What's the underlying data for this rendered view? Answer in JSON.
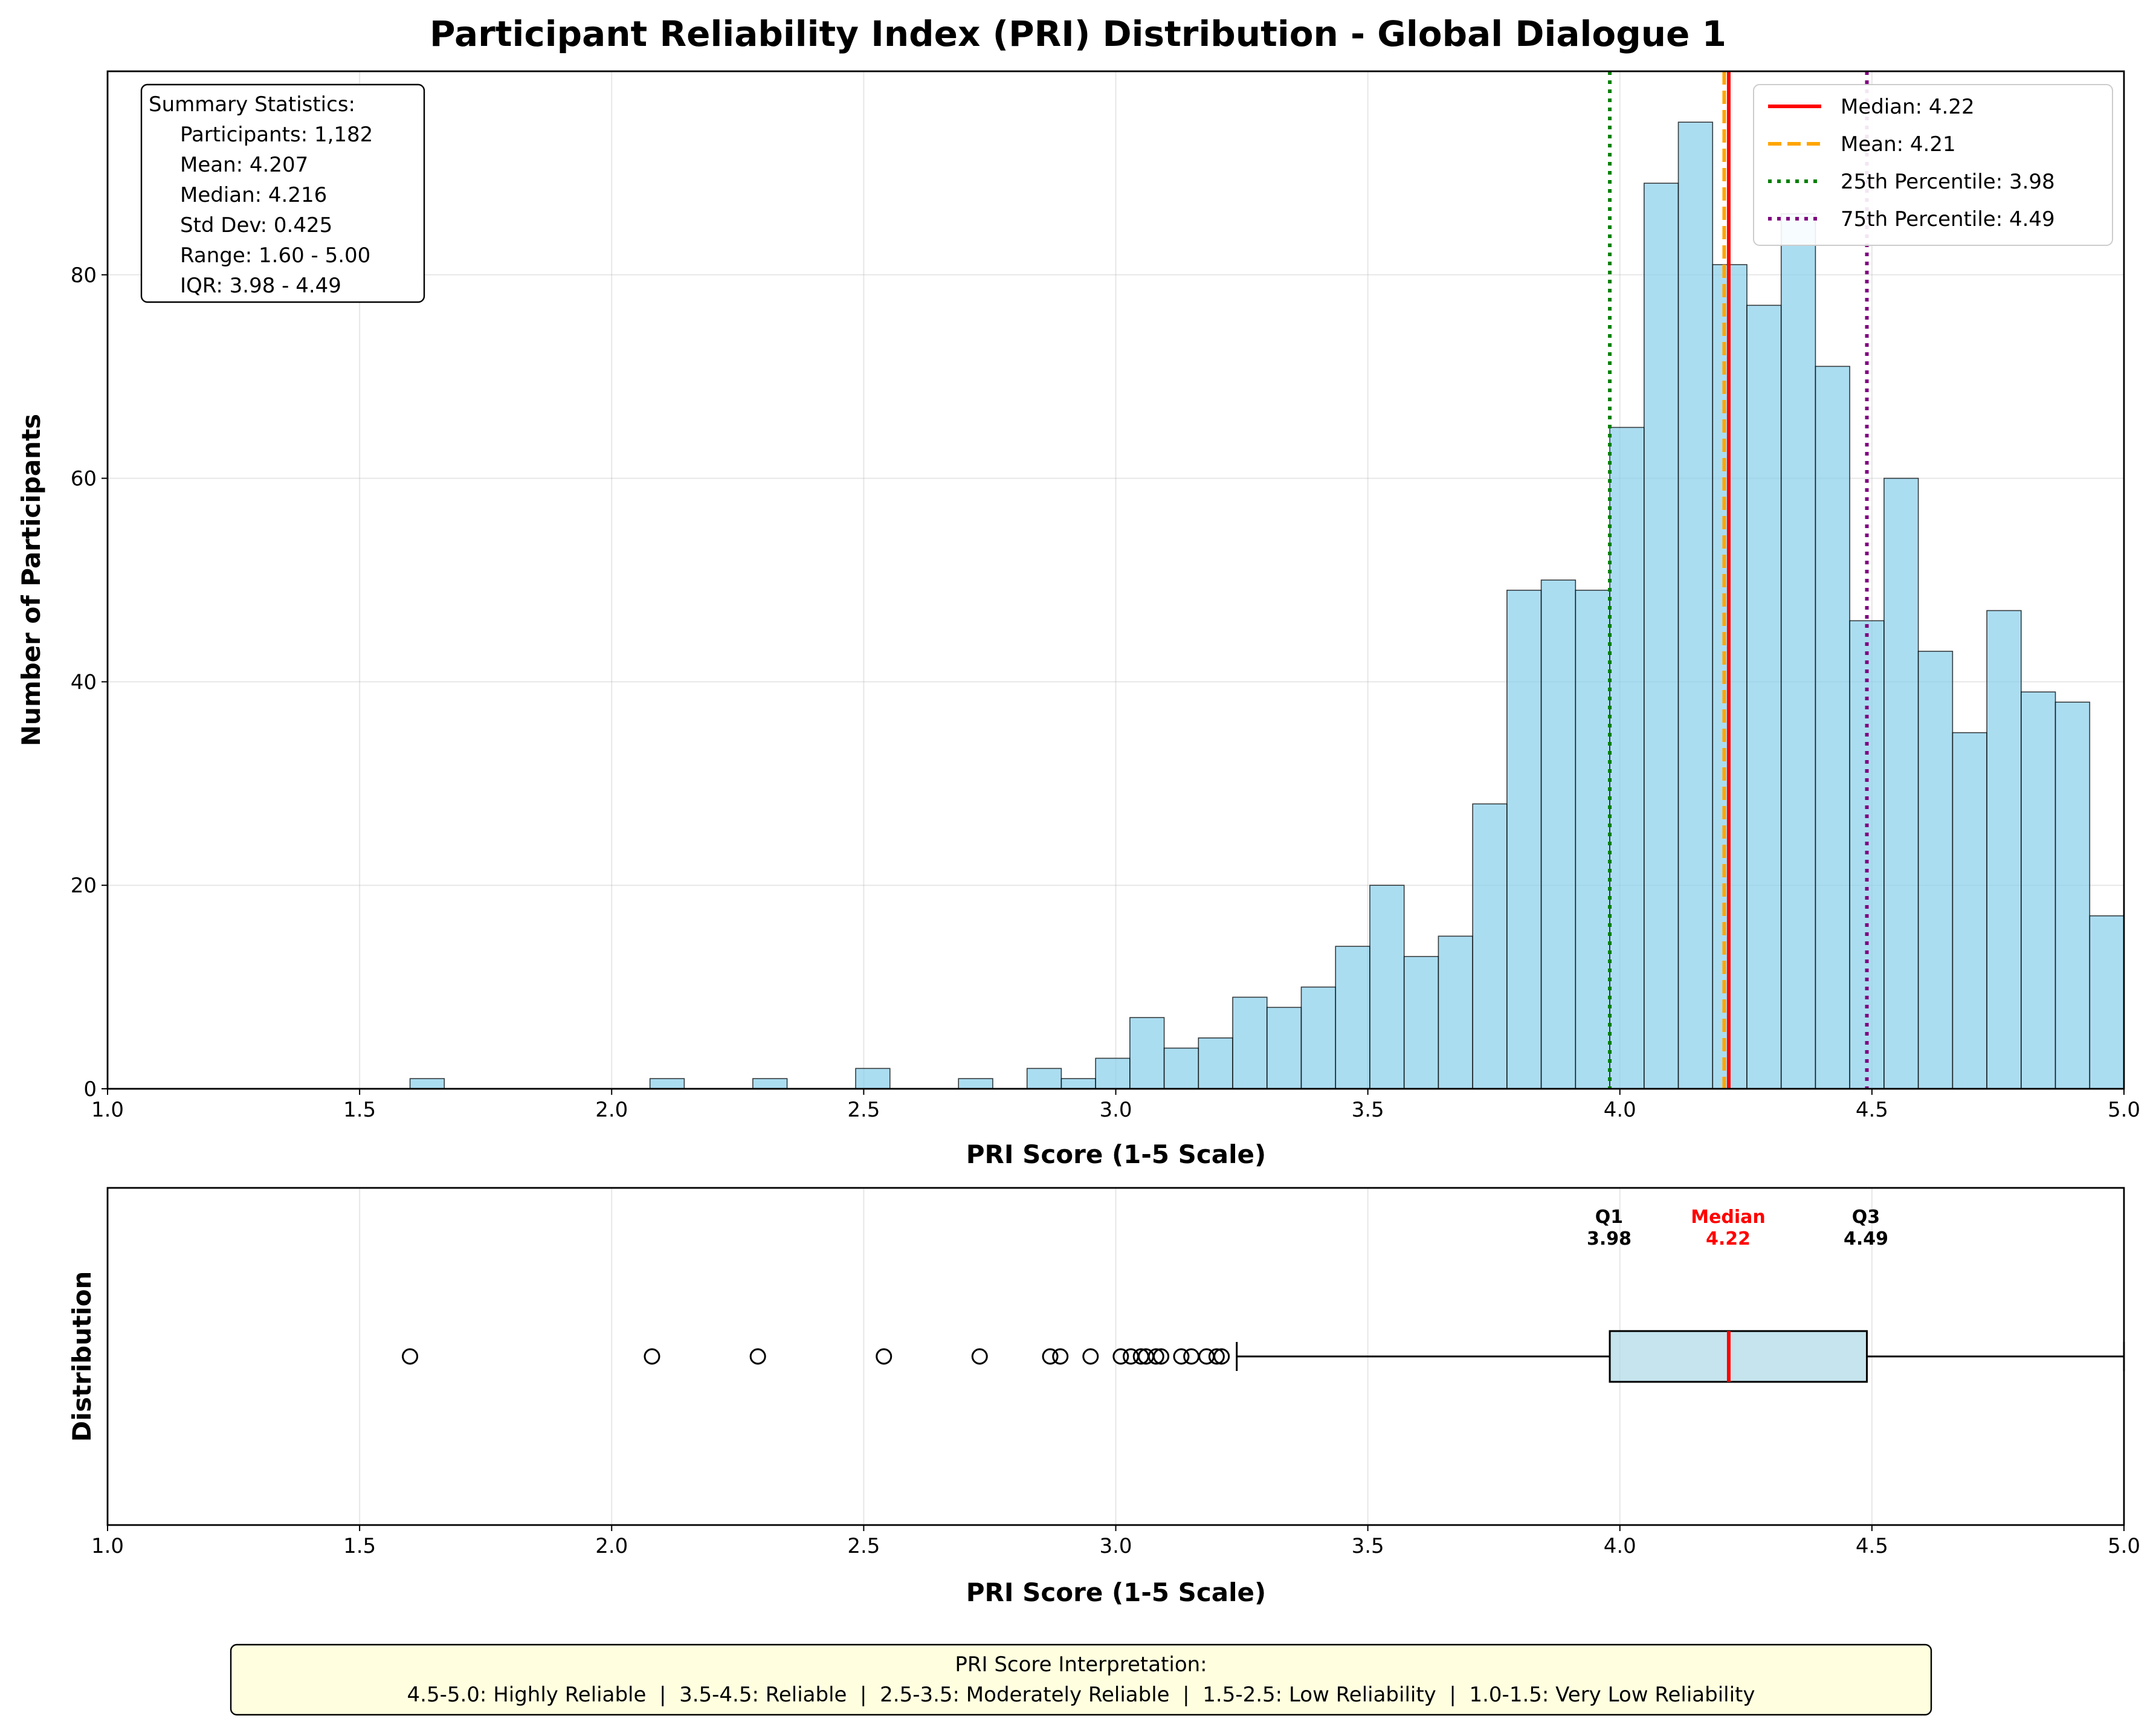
{
  "title": "Participant Reliability Index (PRI) Distribution - Global Dialogue 1",
  "colors": {
    "bar": "#87ceeb",
    "median": "#ff0000",
    "mean": "#ffa500",
    "p25": "#008000",
    "p75": "#800080",
    "box": "#add8e6",
    "legend_bg": "#ffffff",
    "interp_bg": "#ffffe0"
  },
  "stats_box": {
    "header": "Summary Statistics:",
    "lines": [
      "Participants: 1,182",
      "Mean: 4.207",
      "Median: 4.216",
      "Std Dev: 0.425",
      "Range: 1.60 - 5.00",
      "IQR: 3.98 - 4.49"
    ]
  },
  "legend": [
    {
      "label": "Median: 4.22",
      "style": "solid",
      "color": "#ff0000"
    },
    {
      "label": "Mean: 4.21",
      "style": "dashed",
      "color": "#ffa500"
    },
    {
      "label": "25th Percentile: 3.98",
      "style": "dotted",
      "color": "#008000"
    },
    {
      "label": "75th Percentile: 4.49",
      "style": "dotted",
      "color": "#800080"
    }
  ],
  "box_labels": {
    "q1": {
      "name": "Q1",
      "value": "3.98"
    },
    "median": {
      "name": "Median",
      "value": "4.22"
    },
    "q3": {
      "name": "Q3",
      "value": "4.49"
    }
  },
  "interpretation": {
    "header": "PRI Score Interpretation:",
    "text": "4.5-5.0: Highly Reliable  |  3.5-4.5: Reliable  |  2.5-3.5: Moderately Reliable  |  1.5-2.5: Low Reliability  |  1.0-1.5: Very Low Reliability"
  },
  "chart_data": [
    {
      "type": "bar",
      "title": "Participant Reliability Index (PRI) Distribution - Global Dialogue 1",
      "xlabel": "PRI Score (1-5 Scale)",
      "ylabel": "Number of Participants",
      "xlim": [
        1.0,
        5.0
      ],
      "ylim": [
        0,
        100
      ],
      "xticks": [
        "1.0",
        "1.5",
        "2.0",
        "2.5",
        "3.0",
        "3.5",
        "4.0",
        "4.5",
        "5.0"
      ],
      "yticks": [
        "0",
        "20",
        "40",
        "60",
        "80"
      ],
      "grid": true,
      "legend_position": "upper right",
      "bins": {
        "start": 1.6,
        "width": 0.068,
        "counts": [
          1,
          0,
          0,
          0,
          0,
          0,
          0,
          1,
          0,
          0,
          1,
          0,
          0,
          2,
          0,
          0,
          1,
          0,
          2,
          1,
          3,
          7,
          4,
          5,
          9,
          8,
          10,
          14,
          20,
          13,
          15,
          28,
          49,
          50,
          49,
          65,
          89,
          95,
          81,
          77,
          86,
          71,
          46,
          60,
          43,
          35,
          47,
          39,
          38,
          17
        ]
      },
      "reference_lines": [
        {
          "name": "Median",
          "x": 4.216
        },
        {
          "name": "Mean",
          "x": 4.207
        },
        {
          "name": "25th Percentile",
          "x": 3.98
        },
        {
          "name": "75th Percentile",
          "x": 4.49
        }
      ]
    },
    {
      "type": "box",
      "xlabel": "PRI Score (1-5 Scale)",
      "ylabel": "Distribution",
      "xlim": [
        1.0,
        5.0
      ],
      "xticks": [
        "1.0",
        "1.5",
        "2.0",
        "2.5",
        "3.0",
        "3.5",
        "4.0",
        "4.5",
        "5.0"
      ],
      "grid": true,
      "q1": 3.98,
      "median": 4.216,
      "q3": 4.49,
      "whisker_low": 3.24,
      "whisker_high": 5.0,
      "outliers": [
        1.6,
        2.08,
        2.29,
        2.54,
        2.73,
        2.87,
        2.89,
        2.95,
        3.01,
        3.03,
        3.05,
        3.06,
        3.08,
        3.09,
        3.13,
        3.15,
        3.18,
        3.2,
        3.21
      ]
    }
  ]
}
